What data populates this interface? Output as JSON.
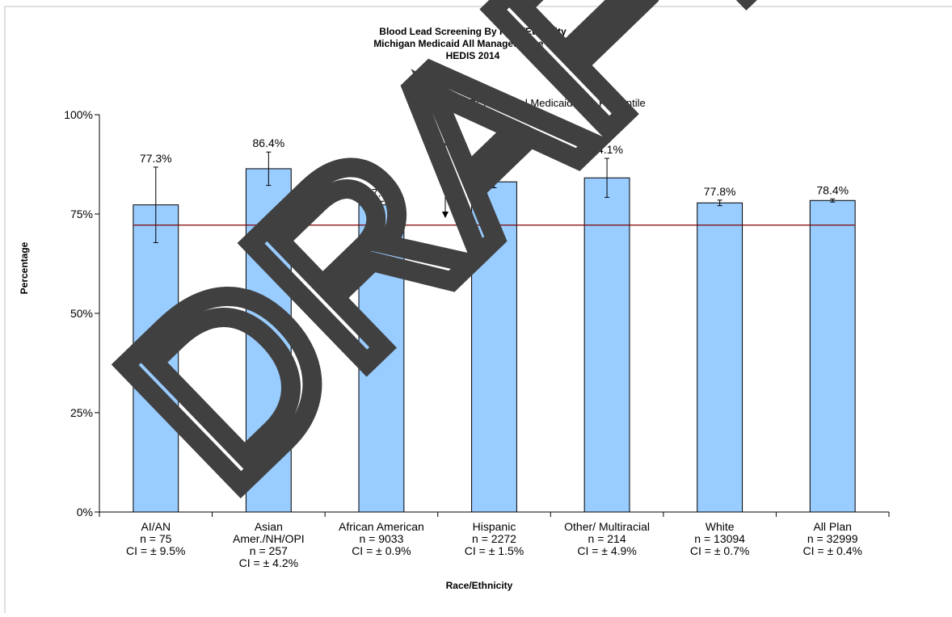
{
  "chart_data": {
    "type": "bar",
    "title": [
      "Blood Lead Screening By Race/Ethnicity",
      "Michigan Medicaid All Managed Care Plans",
      "HEDIS 2014"
    ],
    "xlabel": "Race/Ethnicity",
    "ylabel": "Percentage",
    "ylim": [
      0,
      100
    ],
    "yticks": [
      0,
      25,
      50,
      75,
      100
    ],
    "ytick_labels": [
      "0%",
      "25%",
      "50%",
      "75%",
      "100%"
    ],
    "grid": false,
    "legend": "none",
    "bar_color": "#99ccff",
    "bar_edge_color": "#000000",
    "reference_line": {
      "value": 72.2,
      "label": "2014 HEDIS National Medicaid 50th Percentile",
      "color": "#800000"
    },
    "categories": [
      {
        "lines": [
          "AI/AN",
          "n = 75",
          "CI = ± 9.5%"
        ],
        "value": 77.3,
        "ci": 9.5,
        "value_label": "77.3%"
      },
      {
        "lines": [
          "Asian",
          "Amer./NH/OPI",
          "n = 257",
          "CI = ± 4.2%"
        ],
        "value": 86.4,
        "ci": 4.2,
        "value_label": "86.4%"
      },
      {
        "lines": [
          "African American",
          "n = 9033",
          "CI = ± 0.9%"
        ],
        "value": 77.3,
        "ci": 0.9,
        "value_label": "77.3%"
      },
      {
        "lines": [
          "Hispanic",
          "n = 2272",
          "CI = ± 1.5%"
        ],
        "value": 83.1,
        "ci": 1.5,
        "value_label": "83.1%"
      },
      {
        "lines": [
          "Other/ Multiracial",
          "n = 214",
          "CI = ± 4.9%"
        ],
        "value": 84.1,
        "ci": 4.9,
        "value_label": "84.1%"
      },
      {
        "lines": [
          "White",
          "n = 13094",
          "CI = ±  0.7%"
        ],
        "value": 77.8,
        "ci": 0.7,
        "value_label": "77.8%"
      },
      {
        "lines": [
          "All Plan",
          "n = 32999",
          "CI = ±  0.4%"
        ],
        "value": 78.4,
        "ci": 0.4,
        "value_label": "78.4%"
      }
    ]
  },
  "watermark": {
    "text": "DRAFT",
    "color": "#404040"
  }
}
